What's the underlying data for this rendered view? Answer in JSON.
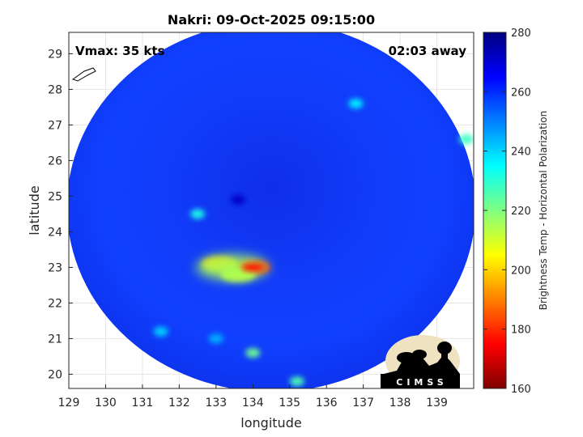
{
  "chart_data": {
    "type": "heatmap",
    "title": "Nakri: 09-Oct-2025 09:15:00",
    "xlabel": "longitude",
    "ylabel": "latitude",
    "xlim": [
      129,
      140
    ],
    "ylim": [
      19.6,
      29.6
    ],
    "x_ticks": [
      129,
      130,
      131,
      132,
      133,
      134,
      135,
      136,
      137,
      138,
      139
    ],
    "y_ticks": [
      20,
      21,
      22,
      23,
      24,
      25,
      26,
      27,
      28,
      29
    ],
    "grid": true,
    "annotations": {
      "vmax": "Vmax: 35 kts",
      "time_away": "02:03 away"
    },
    "swath": {
      "center": [
        134.5,
        24.7
      ],
      "radius_lon": 5.55,
      "radius_lat": 5.2
    },
    "background_value": 262,
    "features": [
      {
        "lon": 134.0,
        "lat": 23.0,
        "value": 176
      },
      {
        "lon": 133.1,
        "lat": 23.1,
        "value": 198
      },
      {
        "lon": 133.6,
        "lat": 22.8,
        "value": 212
      },
      {
        "lon": 133.6,
        "lat": 24.9,
        "value": 272
      },
      {
        "lon": 133.0,
        "lat": 21.0,
        "value": 244
      },
      {
        "lon": 134.0,
        "lat": 20.6,
        "value": 222
      },
      {
        "lon": 131.5,
        "lat": 21.2,
        "value": 240
      },
      {
        "lon": 132.5,
        "lat": 24.5,
        "value": 232
      },
      {
        "lon": 136.8,
        "lat": 27.6,
        "value": 236
      },
      {
        "lon": 139.8,
        "lat": 26.6,
        "value": 228
      },
      {
        "lon": 135.2,
        "lat": 19.8,
        "value": 226
      }
    ],
    "colorbar": {
      "label": "Brightness Temp - Horizontal Polarization",
      "min": 160,
      "max": 280,
      "ticks": [
        160,
        180,
        200,
        220,
        240,
        260,
        280
      ],
      "colormap": [
        "#800000",
        "#ff0000",
        "#ff8000",
        "#ffff00",
        "#80ff80",
        "#00ffff",
        "#0080ff",
        "#0000ff",
        "#000080"
      ]
    }
  },
  "logo": {
    "text": "CIMSS"
  }
}
